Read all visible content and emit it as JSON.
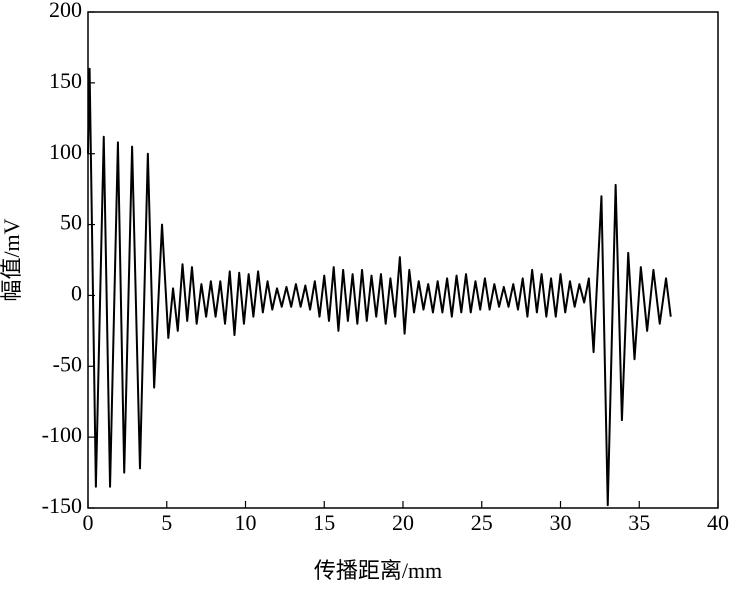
{
  "chart_data": {
    "type": "line",
    "xlabel": "传播距离/mm",
    "ylabel": "幅值/mV",
    "color": "#000000",
    "xlim": [
      0,
      40
    ],
    "xticks": [
      0,
      5,
      10,
      15,
      20,
      25,
      30,
      35,
      40
    ],
    "ylim": [
      -150,
      200
    ],
    "yticks": [
      -150,
      -100,
      -50,
      0,
      50,
      100,
      150,
      200
    ],
    "x": [
      0,
      0.1,
      0.5,
      1.0,
      1.4,
      1.9,
      2.3,
      2.8,
      3.3,
      3.8,
      4.2,
      4.7,
      5.1,
      5.4,
      5.7,
      6.0,
      6.3,
      6.6,
      6.9,
      7.2,
      7.5,
      7.8,
      8.1,
      8.4,
      8.7,
      9.0,
      9.3,
      9.6,
      9.9,
      10.2,
      10.5,
      10.8,
      11.1,
      11.4,
      11.7,
      12.0,
      12.3,
      12.6,
      12.9,
      13.2,
      13.5,
      13.8,
      14.1,
      14.4,
      14.7,
      15.0,
      15.3,
      15.6,
      15.9,
      16.2,
      16.5,
      16.8,
      17.1,
      17.4,
      17.7,
      18.0,
      18.3,
      18.6,
      18.9,
      19.2,
      19.5,
      19.8,
      20.1,
      20.4,
      20.7,
      21.0,
      21.3,
      21.6,
      21.9,
      22.2,
      22.5,
      22.8,
      23.1,
      23.4,
      23.7,
      24.0,
      24.3,
      24.6,
      24.9,
      25.2,
      25.5,
      25.8,
      26.1,
      26.4,
      26.7,
      27.0,
      27.3,
      27.6,
      27.9,
      28.2,
      28.5,
      28.8,
      29.1,
      29.4,
      29.7,
      30.0,
      30.3,
      30.6,
      30.9,
      31.2,
      31.5,
      31.8,
      32.1,
      32.6,
      33.0,
      33.5,
      33.9,
      34.3,
      34.7,
      35.1,
      35.5,
      35.9,
      36.3,
      36.7,
      37.0
    ],
    "values": [
      100,
      160,
      -135,
      112,
      -135,
      108,
      -125,
      105,
      -122,
      100,
      -65,
      50,
      -30,
      5,
      -25,
      22,
      -18,
      20,
      -20,
      8,
      -15,
      10,
      -15,
      10,
      -20,
      17,
      -28,
      16,
      -20,
      15,
      -15,
      17,
      -12,
      10,
      -10,
      5,
      -8,
      6,
      -8,
      8,
      -8,
      7,
      -10,
      10,
      -15,
      14,
      -18,
      20,
      -25,
      18,
      -18,
      15,
      -20,
      18,
      -18,
      14,
      -15,
      15,
      -20,
      12,
      -15,
      27,
      -27,
      18,
      -12,
      10,
      -10,
      8,
      -12,
      10,
      -12,
      12,
      -15,
      14,
      -12,
      15,
      -12,
      10,
      -10,
      12,
      -10,
      8,
      -8,
      6,
      -8,
      8,
      -10,
      12,
      -15,
      18,
      -12,
      15,
      -15,
      12,
      -15,
      15,
      -12,
      10,
      -8,
      8,
      -5,
      12,
      -40,
      70,
      -148,
      78,
      -88,
      30,
      -45,
      20,
      -25,
      18,
      -20,
      12,
      -15
    ]
  }
}
